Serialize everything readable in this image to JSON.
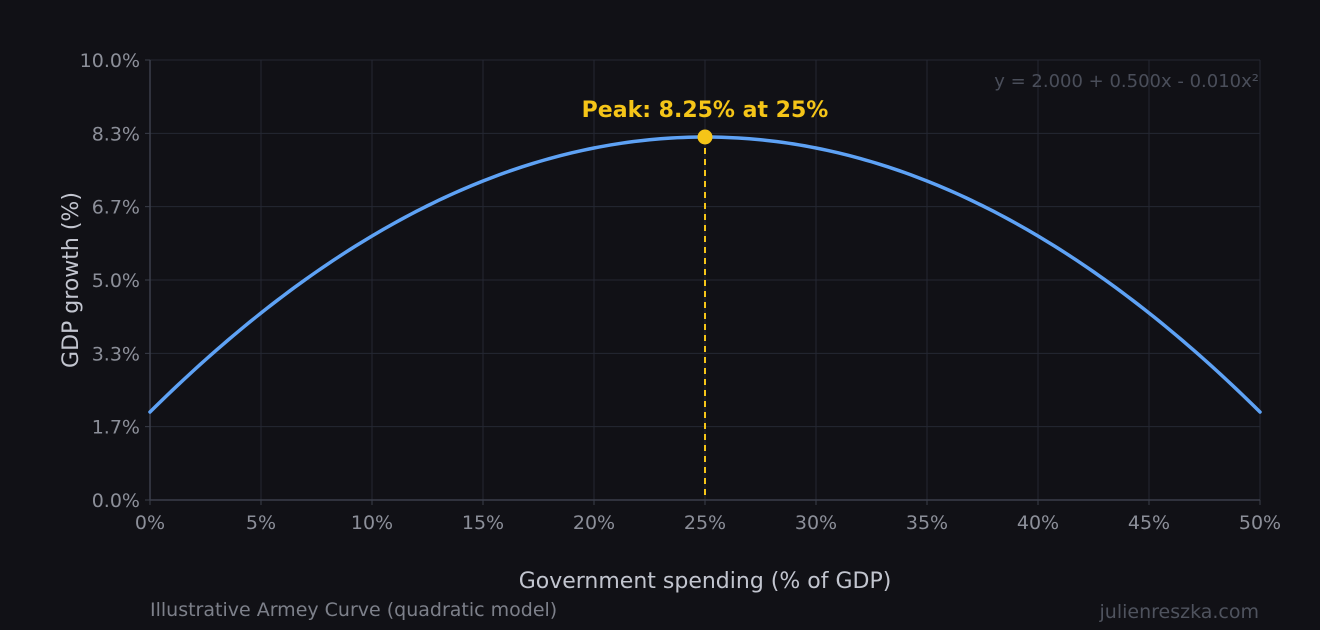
{
  "chart_data": {
    "type": "line",
    "title": "",
    "xlabel": "Government spending (% of GDP)",
    "ylabel": "GDP growth (%)",
    "xlim": [
      0,
      50
    ],
    "ylim": [
      0,
      10
    ],
    "x_ticks": [
      0,
      5,
      10,
      15,
      20,
      25,
      30,
      35,
      40,
      45,
      50
    ],
    "x_tick_labels": [
      "0%",
      "5%",
      "10%",
      "15%",
      "20%",
      "25%",
      "30%",
      "35%",
      "40%",
      "45%",
      "50%"
    ],
    "y_ticks": [
      0,
      1.667,
      3.333,
      5.0,
      6.667,
      8.333,
      10.0
    ],
    "y_tick_labels": [
      "0.0%",
      "1.7%",
      "3.3%",
      "5.0%",
      "6.7%",
      "8.3%",
      "10.0%"
    ],
    "grid": true,
    "model": {
      "a": 2.0,
      "b": 0.5,
      "c": -0.01
    },
    "series": [
      {
        "color": "#5ea2f5",
        "x": [
          0,
          5,
          10,
          15,
          20,
          25,
          30,
          35,
          40,
          45,
          50
        ],
        "y": [
          2.0,
          4.25,
          6.0,
          7.25,
          8.0,
          8.25,
          8.0,
          7.25,
          6.0,
          4.25,
          2.0
        ]
      }
    ],
    "peak": {
      "x": 25,
      "y": 8.25,
      "label": "Peak: 8.25% at 25%",
      "color": "#f5c518"
    },
    "annotation": "y = 2.000 + 0.500x - 0.010x²"
  },
  "footer": {
    "caption": "Illustrative Armey Curve (quadratic model)",
    "brand": "julienreszka.com"
  },
  "colors": {
    "background": "#111116",
    "grid": "#252833",
    "axis": "#3a3e4a",
    "line": "#5ea2f5",
    "peak": "#f5c518"
  }
}
